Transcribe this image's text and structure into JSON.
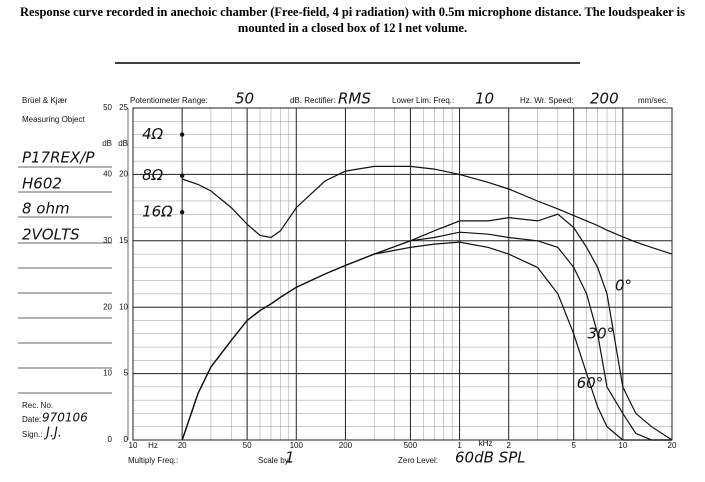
{
  "caption": "Response curve recorded in anechoic chamber (Free-field, 4 pi radiation) with 0.5m microphone distance. The loudspeaker is mounted in a closed box of 12 l net volume.",
  "form": {
    "brand": "Brüel & Kjær",
    "object_label": "Measuring Object",
    "object_lines": [
      "P17REX/P",
      "H602",
      "8 ohm",
      "2VOLTS"
    ],
    "pot_label": "Potentiometer Range:",
    "pot_value": "50",
    "rect_label": "dB. Rectifier:",
    "rect_value": "RMS",
    "lim_label": "Lower Lim. Freq.:",
    "lim_value": "10",
    "speed_label": "Hz. Wr. Speed:",
    "speed_value": "200",
    "speed_unit": "mm/sec.",
    "rec_label": "Rec. No.",
    "date_label": "Date:",
    "date_value": "970106",
    "sign_label": "Sign.:",
    "sign_value": "J.J.",
    "mult_label": "Multiply Freq.:",
    "scale_label": "Scale by:",
    "scale_value": "1",
    "zero_label": "Zero Level:",
    "zero_value": "60dB SPL"
  },
  "chart_data": {
    "type": "line",
    "xscale": "log",
    "xlim": [
      10,
      20000
    ],
    "xticks": [
      10,
      20,
      50,
      100,
      200,
      500,
      {
        "value": 1000,
        "label": "1"
      },
      {
        "value": 2000,
        "label": "2"
      },
      {
        "value": 5000,
        "label": "5"
      },
      {
        "value": 10000,
        "label": "10"
      },
      {
        "value": 20000,
        "label": "20"
      }
    ],
    "xunit_low": "Hz",
    "xunit_high": "kHz",
    "ylim": [
      0,
      50
    ],
    "yticks": [
      0,
      10,
      20,
      30,
      40,
      50
    ],
    "y2lim": [
      0,
      25
    ],
    "y2ticks": [
      0,
      5,
      10,
      15,
      20,
      25
    ],
    "ylabel": "dB",
    "y2label": "dB",
    "grid": true,
    "x": [
      20,
      25,
      30,
      40,
      50,
      60,
      70,
      80,
      100,
      150,
      200,
      300,
      500,
      700,
      1000,
      1500,
      2000,
      3000,
      4000,
      5000,
      6000,
      7000,
      8000,
      10000,
      12000,
      15000,
      20000
    ],
    "series": [
      {
        "color": "#111",
        "values": [
          39.3,
          38.5,
          37.5,
          35,
          32.5,
          30.8,
          30.5,
          31.5,
          35,
          39,
          40.5,
          41.2,
          41.2,
          40.8,
          40,
          38.8,
          37.8,
          36,
          34.8,
          33.8,
          33,
          32.3,
          31.6,
          30.6,
          29.8,
          29,
          28
        ]
      },
      {
        "name": "0°",
        "color": "#111",
        "values": [
          0,
          7,
          11,
          15,
          18,
          19.5,
          20.5,
          21.5,
          23,
          25,
          26.3,
          28,
          30,
          31.5,
          33,
          33,
          33.5,
          33,
          34,
          32,
          29,
          26,
          22,
          8,
          4,
          2,
          0
        ]
      },
      {
        "name": "30°",
        "color": "#111",
        "values": [
          0,
          7,
          11,
          15,
          18,
          19.5,
          20.5,
          21.5,
          23,
          25,
          26.3,
          28,
          30,
          30.5,
          31.3,
          31,
          30.5,
          30,
          29,
          26,
          22,
          16,
          8,
          4,
          1,
          0,
          0
        ]
      },
      {
        "name": "60°",
        "color": "#111",
        "values": [
          0,
          7,
          11,
          15,
          18,
          19.5,
          20.5,
          21.5,
          23,
          25,
          26.3,
          28,
          29,
          29.5,
          29.8,
          29,
          28,
          26,
          22,
          16,
          10,
          5,
          2,
          0,
          0,
          0,
          0
        ]
      }
    ],
    "impedance_markers": {
      "labels": [
        "4Ω",
        "8Ω",
        "16Ω"
      ],
      "values": [
        46,
        39.8,
        34.3
      ]
    }
  }
}
